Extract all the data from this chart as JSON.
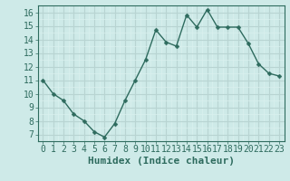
{
  "x": [
    0,
    1,
    2,
    3,
    4,
    5,
    6,
    7,
    8,
    9,
    10,
    11,
    12,
    13,
    14,
    15,
    16,
    17,
    18,
    19,
    20,
    21,
    22,
    23
  ],
  "y": [
    11,
    10,
    9.5,
    8.5,
    8,
    7.2,
    6.8,
    7.8,
    9.5,
    11,
    12.5,
    14.7,
    13.8,
    13.5,
    15.8,
    14.9,
    16.2,
    14.9,
    14.9,
    14.9,
    13.7,
    12.2,
    11.5,
    11.3
  ],
  "line_color": "#2e6b5e",
  "marker": "D",
  "marker_size": 2.5,
  "bg_color": "#ceeae8",
  "grid_major_color": "#b8d4d2",
  "grid_minor_color": "#daf0ee",
  "xlabel": "Humidex (Indice chaleur)",
  "xlim": [
    -0.5,
    23.5
  ],
  "ylim": [
    6.5,
    16.5
  ],
  "yticks": [
    7,
    8,
    9,
    10,
    11,
    12,
    13,
    14,
    15,
    16
  ],
  "xticks": [
    0,
    1,
    2,
    3,
    4,
    5,
    6,
    7,
    8,
    9,
    10,
    11,
    12,
    13,
    14,
    15,
    16,
    17,
    18,
    19,
    20,
    21,
    22,
    23
  ],
  "font_color": "#2e6b5e",
  "tick_font_size": 7,
  "label_font_size": 8
}
